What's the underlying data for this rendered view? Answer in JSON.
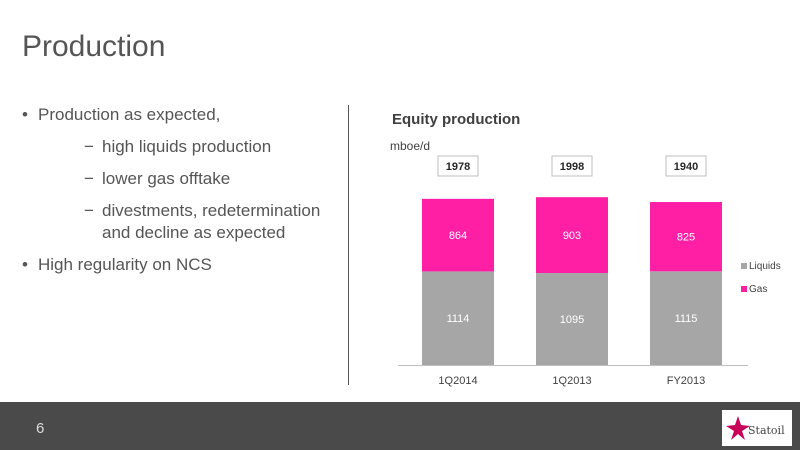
{
  "slide": {
    "title": "Production",
    "page_number": "6",
    "logo_text": "Statoil"
  },
  "bullets": [
    {
      "level": 1,
      "text": "Production as expected,"
    },
    {
      "level": 2,
      "text": "high liquids production"
    },
    {
      "level": 2,
      "text": "lower gas offtake"
    },
    {
      "level": 2,
      "text": "divestments, redetermination and decline as expected"
    },
    {
      "level": 1,
      "text": "High regularity on NCS"
    }
  ],
  "chart_data": {
    "type": "bar",
    "stacked": true,
    "title": "Equity production",
    "ylabel": "mboe/d",
    "categories": [
      "1Q2014",
      "1Q2013",
      "FY2013"
    ],
    "series": [
      {
        "name": "Liquids",
        "color": "#a6a6a6",
        "values": [
          1114,
          1095,
          1115
        ]
      },
      {
        "name": "Gas",
        "color": "#ff1fa5",
        "values": [
          864,
          903,
          825
        ]
      }
    ],
    "totals": [
      1978,
      1998,
      1940
    ],
    "ylim": [
      0,
      2000
    ],
    "grid": false,
    "legend_position": "right"
  }
}
